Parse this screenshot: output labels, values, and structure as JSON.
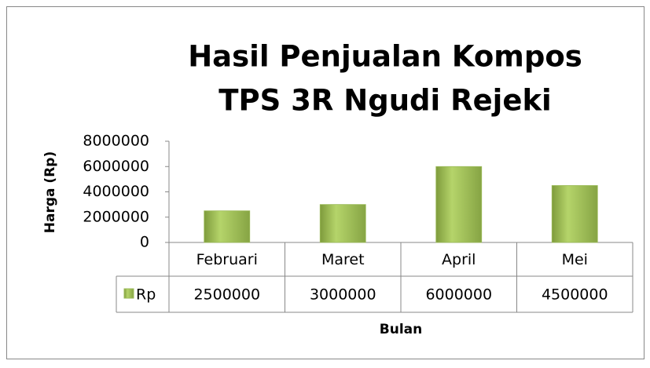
{
  "chart_data": {
    "type": "bar",
    "title": [
      "Hasil Penjualan Kompos",
      "TPS 3R Ngudi Rejeki"
    ],
    "x_label": "Bulan",
    "y_label": "Harga (Rp)",
    "categories": [
      "Februari",
      "Maret",
      "April",
      "Mei"
    ],
    "series": [
      {
        "name": "Rp",
        "color": "#9bbb59",
        "values": [
          2500000,
          3000000,
          6000000,
          4500000
        ]
      }
    ],
    "ylim": [
      0,
      8000000
    ],
    "yticks": [
      0,
      2000000,
      4000000,
      6000000,
      8000000
    ],
    "grid": false,
    "data_table": true
  }
}
